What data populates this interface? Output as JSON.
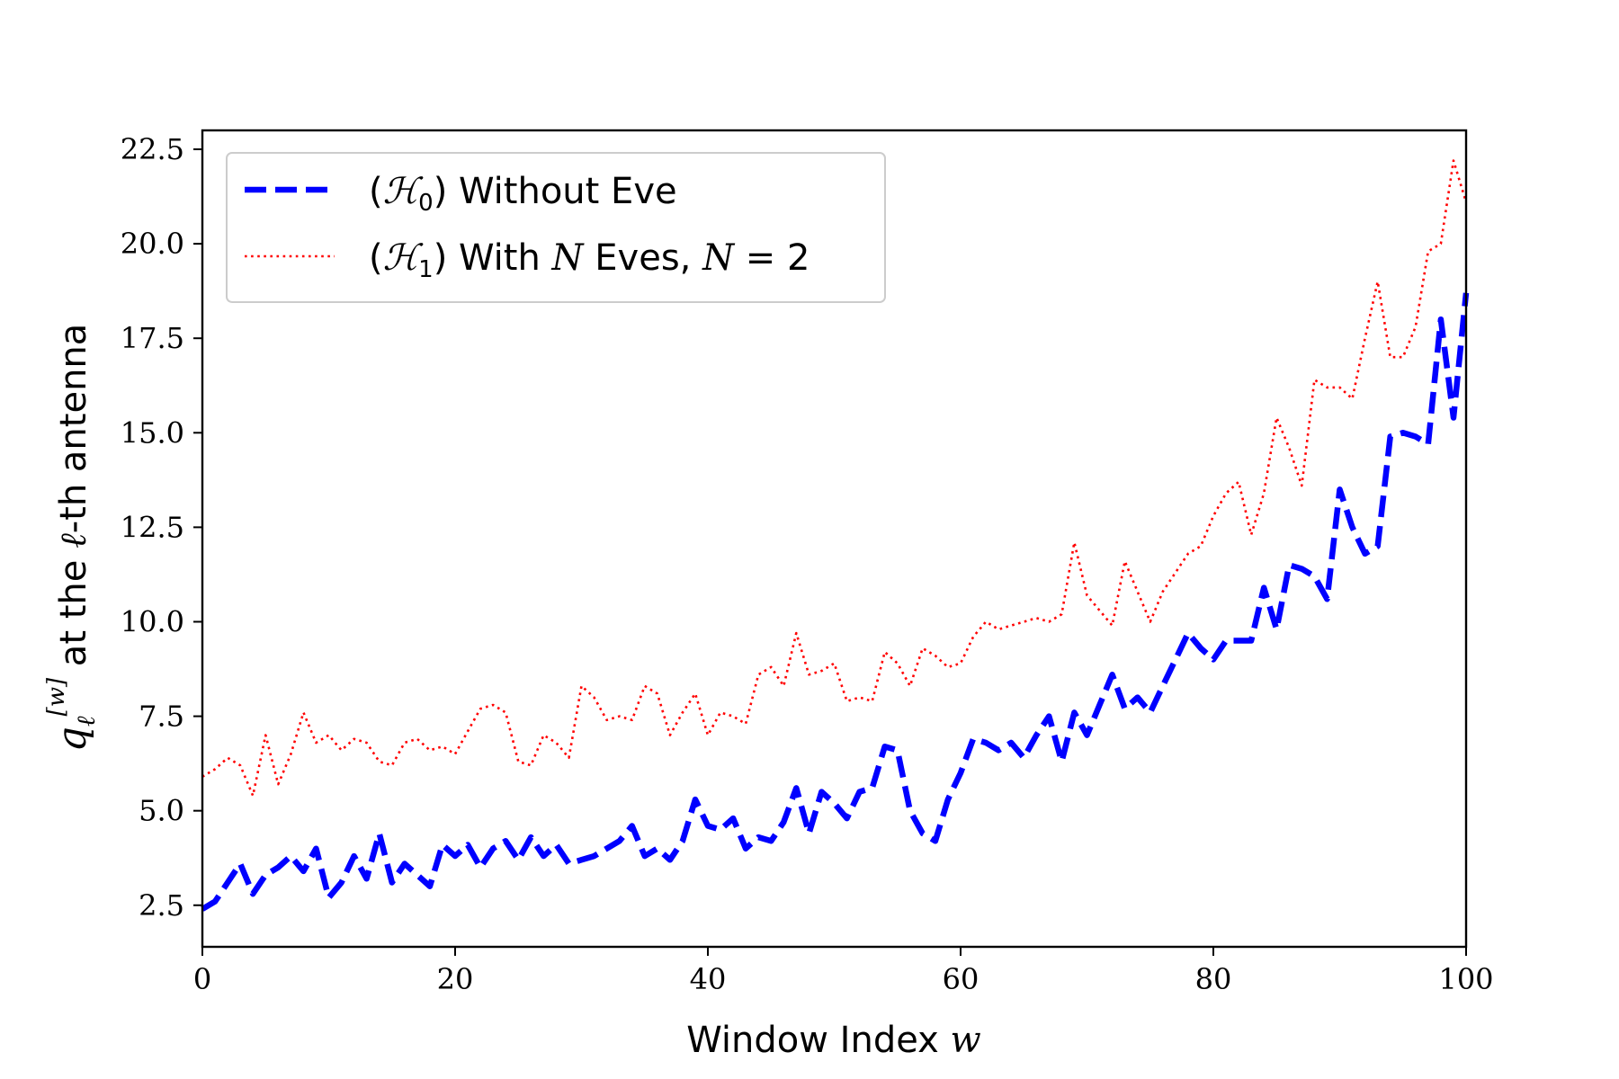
{
  "chart_data": {
    "type": "line",
    "xlabel": "Window Index w",
    "ylabel": "q_ℓ^[w] at the ℓ-th antenna",
    "xlim": [
      0,
      100
    ],
    "ylim": [
      1.4,
      23.0
    ],
    "xticks": [
      0,
      20,
      40,
      60,
      80,
      100
    ],
    "yticks": [
      2.5,
      5.0,
      7.5,
      10.0,
      12.5,
      15.0,
      17.5,
      20.0,
      22.5
    ],
    "grid": false,
    "legend_position": "top-left",
    "series": [
      {
        "name": "(H0) Without Eve",
        "color": "#0000ff",
        "style": "dashed",
        "x": [
          0,
          1,
          2,
          3,
          4,
          5,
          6,
          7,
          8,
          9,
          10,
          11,
          12,
          13,
          14,
          15,
          16,
          17,
          18,
          19,
          20,
          21,
          22,
          23,
          24,
          25,
          26,
          27,
          28,
          29,
          30,
          31,
          32,
          33,
          34,
          35,
          36,
          37,
          38,
          39,
          40,
          41,
          42,
          43,
          44,
          45,
          46,
          47,
          48,
          49,
          50,
          51,
          52,
          53,
          54,
          55,
          56,
          57,
          58,
          59,
          60,
          61,
          62,
          63,
          64,
          65,
          66,
          67,
          68,
          69,
          70,
          71,
          72,
          73,
          74,
          75,
          76,
          77,
          78,
          79,
          80,
          81,
          82,
          83,
          84,
          85,
          86,
          87,
          88,
          89,
          90,
          91,
          92,
          93,
          94,
          95,
          96,
          97,
          98,
          99,
          100
        ],
        "values": [
          2.4,
          2.6,
          3.1,
          3.6,
          2.8,
          3.3,
          3.5,
          3.8,
          3.4,
          4.0,
          2.7,
          3.1,
          3.8,
          3.2,
          4.4,
          3.1,
          3.6,
          3.3,
          3.0,
          4.1,
          3.8,
          4.1,
          3.5,
          4.0,
          4.2,
          3.7,
          4.3,
          3.8,
          4.1,
          3.6,
          3.7,
          3.8,
          4.0,
          4.2,
          4.6,
          3.8,
          4.0,
          3.7,
          4.2,
          5.3,
          4.6,
          4.5,
          4.8,
          4.0,
          4.3,
          4.2,
          4.7,
          5.6,
          4.4,
          5.5,
          5.2,
          4.8,
          5.5,
          5.6,
          6.7,
          6.6,
          5.0,
          4.4,
          4.2,
          5.3,
          6.0,
          6.9,
          6.8,
          6.6,
          6.8,
          6.4,
          7.0,
          7.5,
          6.3,
          7.6,
          7.0,
          7.8,
          8.6,
          7.7,
          8.0,
          7.6,
          8.3,
          9.0,
          9.7,
          9.3,
          9.0,
          9.5,
          9.5,
          9.5,
          10.9,
          9.8,
          11.5,
          11.4,
          11.2,
          10.6,
          13.5,
          12.5,
          11.8,
          12.0,
          14.9,
          15.0,
          14.9,
          14.7,
          18.0,
          15.4,
          18.7
        ]
      },
      {
        "name": "(H1) With N Eves, N = 2",
        "color": "#ff0000",
        "style": "dotted",
        "x": [
          0,
          1,
          2,
          3,
          4,
          5,
          6,
          7,
          8,
          9,
          10,
          11,
          12,
          13,
          14,
          15,
          16,
          17,
          18,
          19,
          20,
          21,
          22,
          23,
          24,
          25,
          26,
          27,
          28,
          29,
          30,
          31,
          32,
          33,
          34,
          35,
          36,
          37,
          38,
          39,
          40,
          41,
          42,
          43,
          44,
          45,
          46,
          47,
          48,
          49,
          50,
          51,
          52,
          53,
          54,
          55,
          56,
          57,
          58,
          59,
          60,
          61,
          62,
          63,
          64,
          65,
          66,
          67,
          68,
          69,
          70,
          71,
          72,
          73,
          74,
          75,
          76,
          77,
          78,
          79,
          80,
          81,
          82,
          83,
          84,
          85,
          86,
          87,
          88,
          89,
          90,
          91,
          92,
          93,
          94,
          95,
          96,
          97,
          98,
          99,
          100
        ],
        "values": [
          5.9,
          6.1,
          6.4,
          6.2,
          5.4,
          7.0,
          5.7,
          6.5,
          7.6,
          6.8,
          7.0,
          6.6,
          6.9,
          6.8,
          6.3,
          6.2,
          6.8,
          6.9,
          6.6,
          6.7,
          6.5,
          7.1,
          7.7,
          7.8,
          7.6,
          6.3,
          6.2,
          7.0,
          6.8,
          6.4,
          8.3,
          8.0,
          7.4,
          7.5,
          7.4,
          8.3,
          8.1,
          7.0,
          7.6,
          8.1,
          7.0,
          7.6,
          7.5,
          7.3,
          8.6,
          8.8,
          8.3,
          9.7,
          8.6,
          8.7,
          8.9,
          7.9,
          8.0,
          7.9,
          9.2,
          8.9,
          8.3,
          9.3,
          9.1,
          8.8,
          8.9,
          9.6,
          10.0,
          9.8,
          9.9,
          10.0,
          10.1,
          10.0,
          10.2,
          12.1,
          10.7,
          10.3,
          9.9,
          11.6,
          10.8,
          10.0,
          10.8,
          11.3,
          11.8,
          12.0,
          12.8,
          13.4,
          13.7,
          12.3,
          13.4,
          15.4,
          14.6,
          13.6,
          16.4,
          16.2,
          16.2,
          15.9,
          17.5,
          19.0,
          17.0,
          17.0,
          17.8,
          19.8,
          20.0,
          22.2,
          21.1
        ]
      }
    ]
  }
}
